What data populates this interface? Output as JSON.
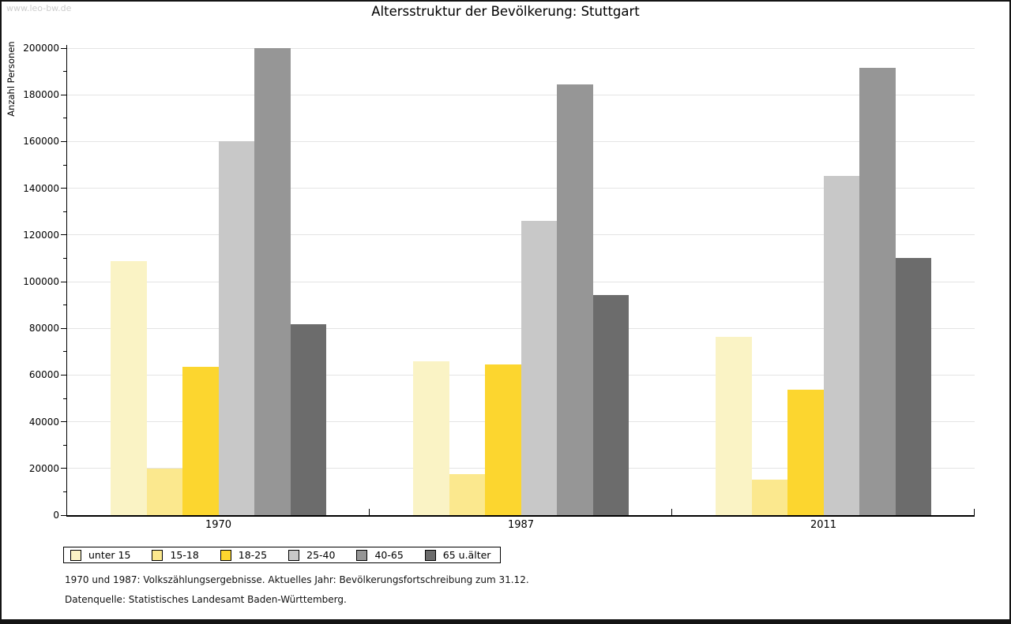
{
  "watermark": "www.leo-bw.de",
  "title": "Altersstruktur der Bevölkerung: Stuttgart",
  "footnotes": [
    "1970 und 1987: Volkszählungsergebnisse. Aktuelles Jahr: Bevölkerungsfortschreibung zum 31.12.",
    "Datenquelle: Statistisches Landesamt Baden-Württemberg."
  ],
  "chart_data": {
    "type": "bar",
    "title": "Altersstruktur der Bevölkerung: Stuttgart",
    "xlabel": "",
    "ylabel": "Anzahl Personen",
    "categories": [
      "1970",
      "1987",
      "2011"
    ],
    "series": [
      {
        "name": "unter 15",
        "color": "#FAF3C5",
        "values": [
          108900,
          66000,
          76400
        ]
      },
      {
        "name": "15-18",
        "color": "#FBE88E",
        "values": [
          20100,
          17600,
          15200
        ]
      },
      {
        "name": "18-25",
        "color": "#FCD62F",
        "values": [
          63600,
          64600,
          53800
        ]
      },
      {
        "name": "25-40",
        "color": "#C8C8C8",
        "values": [
          160000,
          125900,
          145400
        ]
      },
      {
        "name": "40-65",
        "color": "#969696",
        "values": [
          199900,
          184300,
          191400
        ]
      },
      {
        "name": "65 u.älter",
        "color": "#6C6C6C",
        "values": [
          81900,
          94100,
          110100
        ]
      }
    ],
    "ylim": [
      0,
      200000
    ],
    "ytick_step": 20000,
    "minor_tick_step": 10000,
    "grid": true,
    "legend_position": "bottom-left",
    "axis_color": "#000000",
    "grid_color": "#e4e4e4"
  }
}
